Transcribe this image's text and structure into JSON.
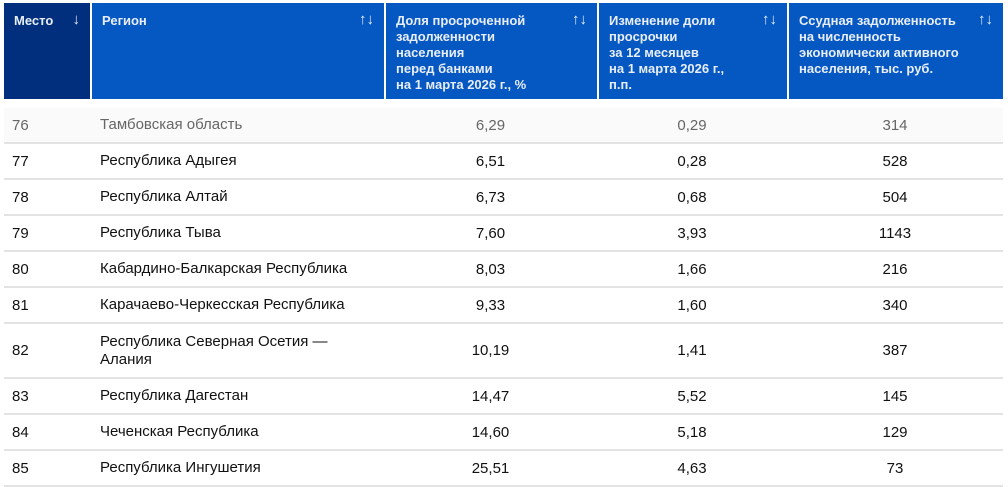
{
  "columns": [
    {
      "label": "Место",
      "sort": "↓"
    },
    {
      "label": "Регион",
      "sort": "↑↓"
    },
    {
      "label": "Доля просроченной\nзадолженности\nнаселения\nперед банками\nна 1 марта 2026 г., %",
      "sort": "↑↓"
    },
    {
      "label": "Изменение доли\nпросрочки\nза 12 месяцев\nна 1 марта 2026 г.,\nп.п.",
      "sort": "↑↓"
    },
    {
      "label": "Ссудная задолженность\nна численность\nэкономически активного\nнаселения, тыс. руб.",
      "sort": "↑↓"
    }
  ],
  "rows": [
    {
      "rank": "76",
      "region": "Тамбовская область",
      "share": "6,29",
      "change": "0,29",
      "debt": "314"
    },
    {
      "rank": "77",
      "region": "Республика Адыгея",
      "share": "6,51",
      "change": "0,28",
      "debt": "528"
    },
    {
      "rank": "78",
      "region": "Республика Алтай",
      "share": "6,73",
      "change": "0,68",
      "debt": "504"
    },
    {
      "rank": "79",
      "region": "Республика Тыва",
      "share": "7,60",
      "change": "3,93",
      "debt": "1143"
    },
    {
      "rank": "80",
      "region": "Кабардино-Балкарская Республика",
      "share": "8,03",
      "change": "1,66",
      "debt": "216"
    },
    {
      "rank": "81",
      "region": "Карачаево-Черкесская Республика",
      "share": "9,33",
      "change": "1,60",
      "debt": "340"
    },
    {
      "rank": "82",
      "region": "Республика Северная Осетия — Алания",
      "share": "10,19",
      "change": "1,41",
      "debt": "387"
    },
    {
      "rank": "83",
      "region": "Республика Дагестан",
      "share": "14,47",
      "change": "5,52",
      "debt": "145"
    },
    {
      "rank": "84",
      "region": "Чеченская Республика",
      "share": "14,60",
      "change": "5,18",
      "debt": "129"
    },
    {
      "rank": "85",
      "region": "Республика Ингушетия",
      "share": "25,51",
      "change": "4,63",
      "debt": "73"
    }
  ]
}
